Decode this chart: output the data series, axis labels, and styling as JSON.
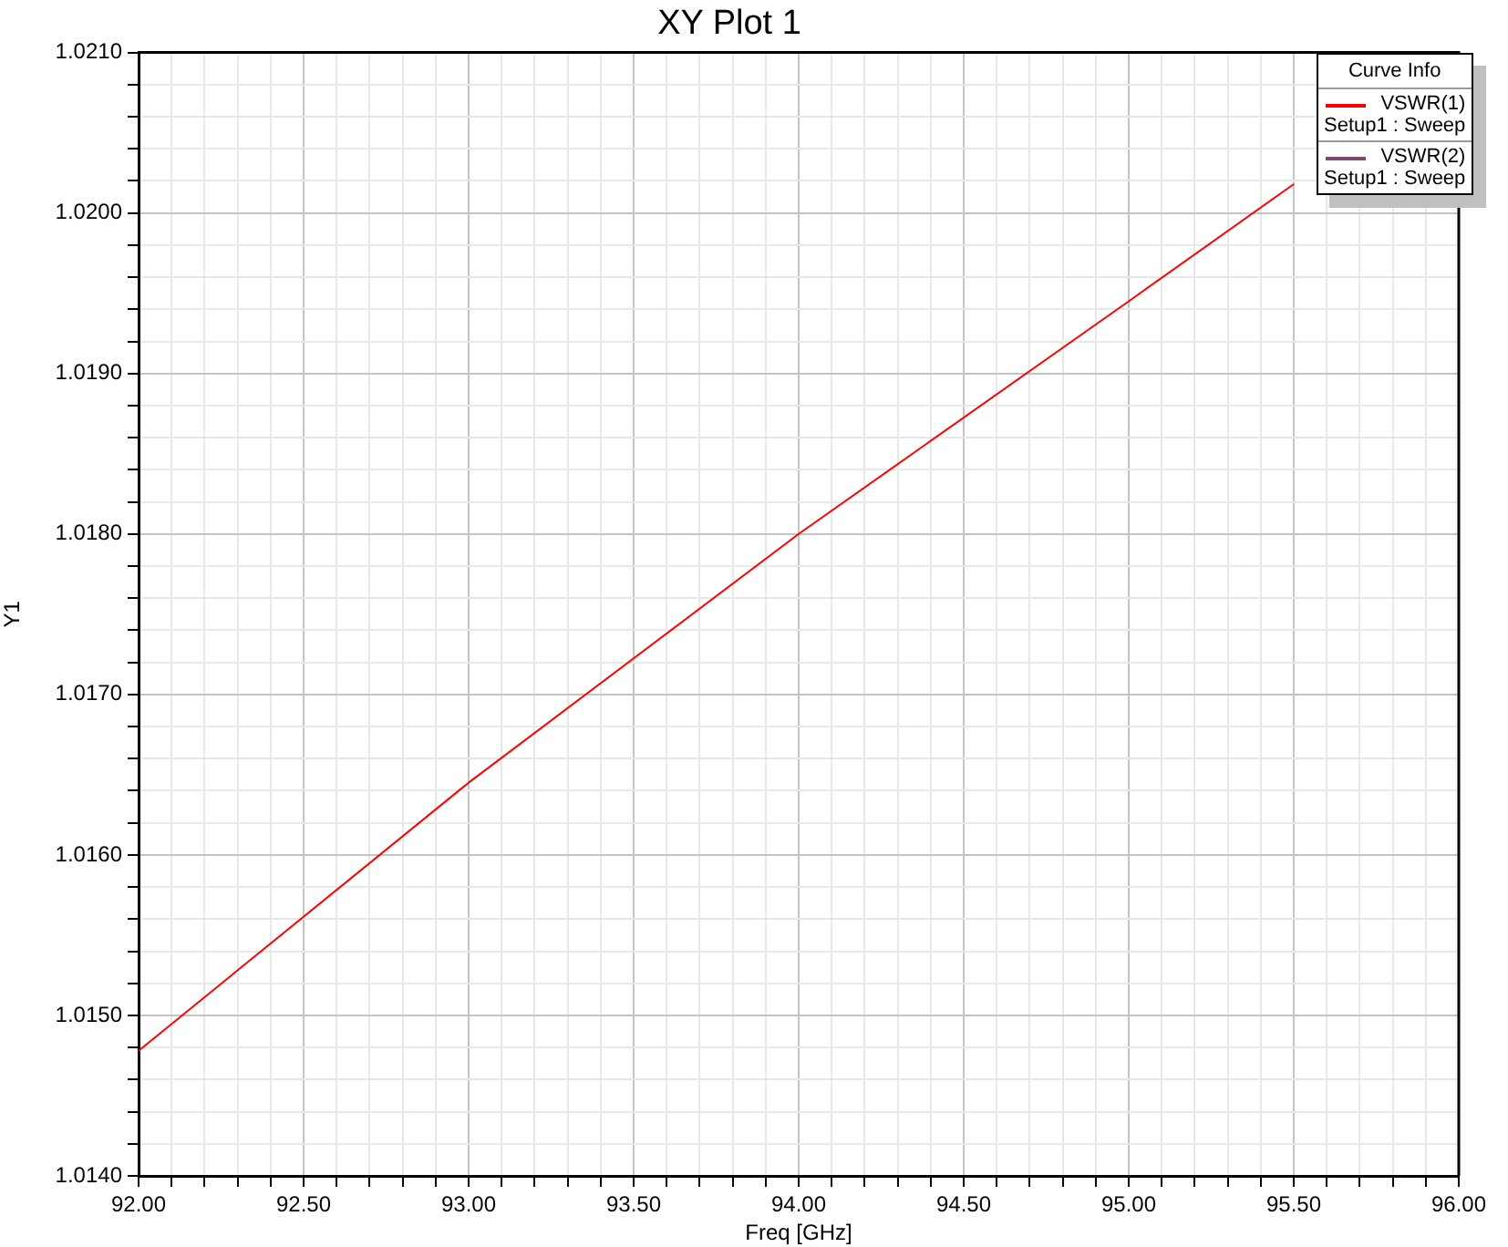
{
  "chart_data": {
    "type": "line",
    "title": "XY Plot 1",
    "xlabel": "Freq [GHz]",
    "ylabel": "Y1",
    "legend_title": "Curve Info",
    "legend": "top right",
    "grid": true,
    "marker": "none",
    "line_style": "solid",
    "x": [
      92,
      93,
      94,
      95,
      95.5
    ],
    "series": [
      {
        "name": "VSWR(1)\nSetup1 : Sweep",
        "color": "#ff0000",
        "values": [
          1.01478,
          1.01645,
          1.018,
          1.01945,
          1.02018
        ]
      },
      {
        "name": "VSWR(2)\nSetup1 : Sweep",
        "color": "#7a4a6a",
        "values": [
          null,
          null,
          null,
          null,
          null
        ]
      }
    ],
    "xlim": [
      92,
      96
    ],
    "ylim": [
      1.014,
      1.021
    ],
    "xticks": [
      {
        "value": 92,
        "label": "92.00"
      },
      {
        "value": 92.1,
        "label": null
      },
      {
        "value": 92.2,
        "label": null
      },
      {
        "value": 92.3,
        "label": null
      },
      {
        "value": 92.4,
        "label": null
      },
      {
        "value": 92.5,
        "label": "92.50"
      },
      {
        "value": 92.6,
        "label": null
      },
      {
        "value": 92.7,
        "label": null
      },
      {
        "value": 92.8,
        "label": null
      },
      {
        "value": 92.9,
        "label": null
      },
      {
        "value": 93,
        "label": "93.00"
      },
      {
        "value": 93.1,
        "label": null
      },
      {
        "value": 93.2,
        "label": null
      },
      {
        "value": 93.3,
        "label": null
      },
      {
        "value": 93.4,
        "label": null
      },
      {
        "value": 93.5,
        "label": "93.50"
      },
      {
        "value": 93.6,
        "label": null
      },
      {
        "value": 93.7,
        "label": null
      },
      {
        "value": 93.8,
        "label": null
      },
      {
        "value": 93.9,
        "label": null
      },
      {
        "value": 94,
        "label": "94.00"
      },
      {
        "value": 94.1,
        "label": null
      },
      {
        "value": 94.2,
        "label": null
      },
      {
        "value": 94.3,
        "label": null
      },
      {
        "value": 94.4,
        "label": null
      },
      {
        "value": 94.5,
        "label": "94.50"
      },
      {
        "value": 94.6,
        "label": null
      },
      {
        "value": 94.7,
        "label": null
      },
      {
        "value": 94.8,
        "label": null
      },
      {
        "value": 94.9,
        "label": null
      },
      {
        "value": 95,
        "label": "95.00"
      },
      {
        "value": 95.1,
        "label": null
      },
      {
        "value": 95.2,
        "label": null
      },
      {
        "value": 95.3,
        "label": null
      },
      {
        "value": 95.4,
        "label": null
      },
      {
        "value": 95.5,
        "label": "95.50"
      },
      {
        "value": 95.6,
        "label": null
      },
      {
        "value": 95.7,
        "label": null
      },
      {
        "value": 95.8,
        "label": null
      },
      {
        "value": 95.9,
        "label": null
      },
      {
        "value": 96,
        "label": "96.00"
      }
    ],
    "yticks": [
      {
        "value": 1.014,
        "label": "1.0140"
      },
      {
        "value": 1.0142,
        "label": null
      },
      {
        "value": 1.0144,
        "label": null
      },
      {
        "value": 1.0146,
        "label": null
      },
      {
        "value": 1.0148,
        "label": null
      },
      {
        "value": 1.015,
        "label": "1.0150"
      },
      {
        "value": 1.0152,
        "label": null
      },
      {
        "value": 1.0154,
        "label": null
      },
      {
        "value": 1.0156,
        "label": null
      },
      {
        "value": 1.0158,
        "label": null
      },
      {
        "value": 1.016,
        "label": "1.0160"
      },
      {
        "value": 1.0162,
        "label": null
      },
      {
        "value": 1.0164,
        "label": null
      },
      {
        "value": 1.0166,
        "label": null
      },
      {
        "value": 1.0168,
        "label": null
      },
      {
        "value": 1.017,
        "label": "1.0170"
      },
      {
        "value": 1.0172,
        "label": null
      },
      {
        "value": 1.0174,
        "label": null
      },
      {
        "value": 1.0176,
        "label": null
      },
      {
        "value": 1.0178,
        "label": null
      },
      {
        "value": 1.018,
        "label": "1.0180"
      },
      {
        "value": 1.0182,
        "label": null
      },
      {
        "value": 1.0184,
        "label": null
      },
      {
        "value": 1.0186,
        "label": null
      },
      {
        "value": 1.0188,
        "label": null
      },
      {
        "value": 1.019,
        "label": "1.0190"
      },
      {
        "value": 1.0192,
        "label": null
      },
      {
        "value": 1.0194,
        "label": null
      },
      {
        "value": 1.0196,
        "label": null
      },
      {
        "value": 1.0198,
        "label": null
      },
      {
        "value": 1.02,
        "label": "1.0200"
      },
      {
        "value": 1.0202,
        "label": null
      },
      {
        "value": 1.0204,
        "label": null
      },
      {
        "value": 1.0206,
        "label": null
      },
      {
        "value": 1.0208,
        "label": null
      },
      {
        "value": 1.021,
        "label": "1.0210"
      }
    ]
  }
}
